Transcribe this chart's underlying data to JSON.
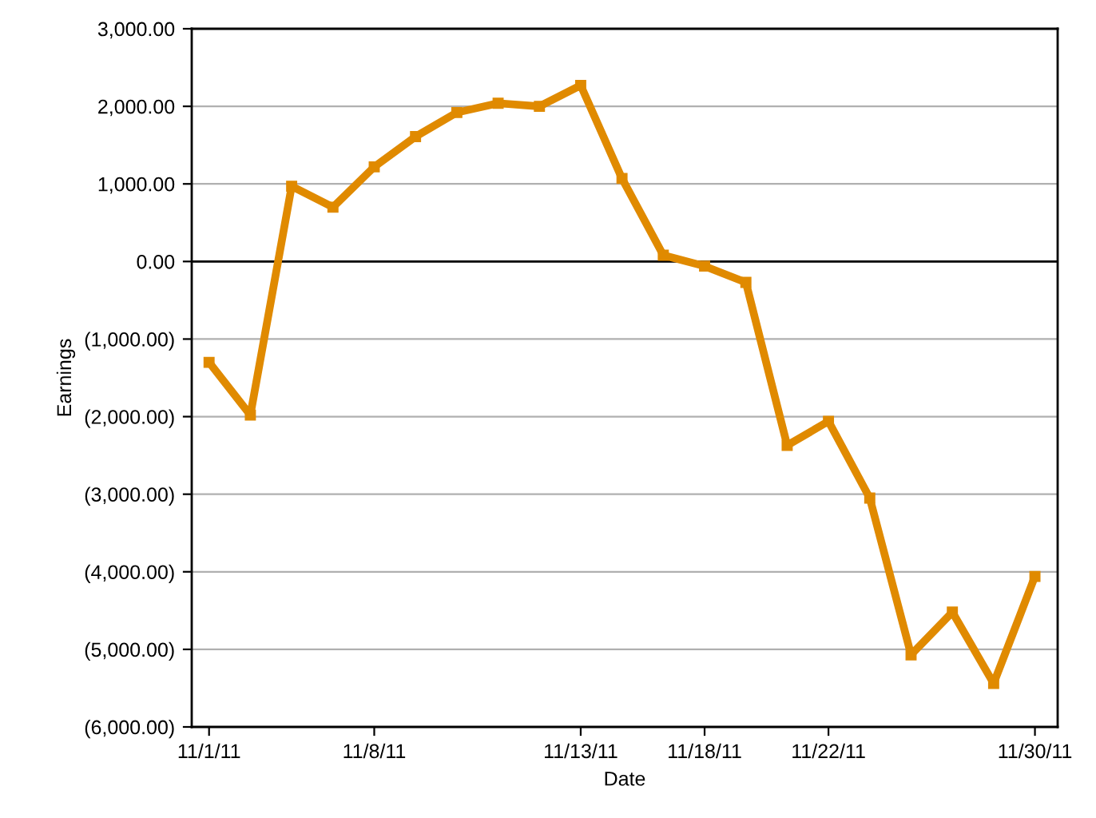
{
  "chart_data": {
    "type": "line",
    "xlabel": "Date",
    "ylabel": "Earnings",
    "categories": [
      "11/1/11",
      null,
      null,
      null,
      "11/8/11",
      null,
      null,
      null,
      null,
      "11/13/11",
      null,
      null,
      "11/18/11",
      null,
      null,
      "11/22/11",
      null,
      null,
      null,
      null,
      "11/30/11"
    ],
    "series": [
      {
        "color": "#e08a00",
        "values": [
          -1300,
          -1980,
          970,
          700,
          1220,
          1610,
          1920,
          2040,
          2000,
          2270,
          1070,
          80,
          -60,
          -270,
          -2370,
          -2060,
          -3050,
          -5070,
          -4520,
          -5440,
          -4060
        ]
      }
    ],
    "ylim": [
      -6000,
      3000
    ],
    "yticks": [
      {
        "value": -6000,
        "label": "(6,000.00)"
      },
      {
        "value": -5000,
        "label": "(5,000.00)"
      },
      {
        "value": -4000,
        "label": "(4,000.00)"
      },
      {
        "value": -3000,
        "label": "(3,000.00)"
      },
      {
        "value": -2000,
        "label": "(2,000.00)"
      },
      {
        "value": -1000,
        "label": "(1,000.00)"
      },
      {
        "value": 0,
        "label": "0.00"
      },
      {
        "value": 1000,
        "label": "1,000.00"
      },
      {
        "value": 2000,
        "label": "2,000.00"
      },
      {
        "value": 3000,
        "label": "3,000.00"
      }
    ],
    "grid": "y",
    "legend": false,
    "marker": "square",
    "line_style": "solid",
    "ref_lines": [
      {
        "axis": "y",
        "value": 0,
        "label": null,
        "color": "#000000"
      }
    ]
  }
}
